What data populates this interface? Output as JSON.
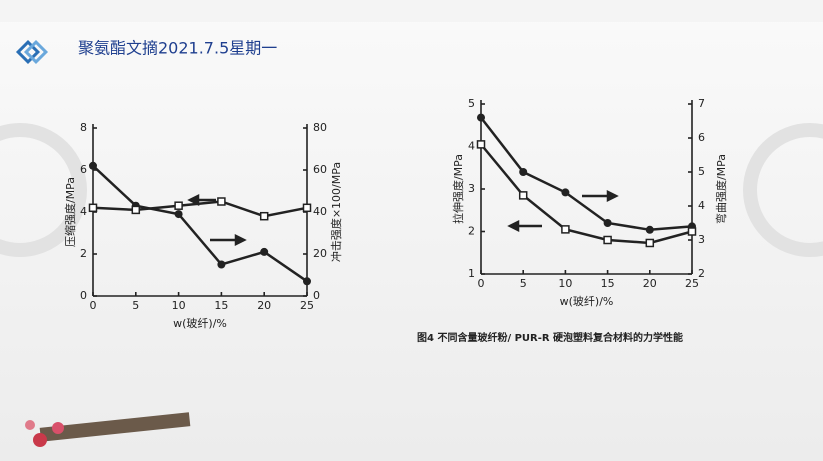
{
  "header": {
    "title": "聚氨酯文摘2021.7.5星期一"
  },
  "chart_data": [
    {
      "type": "line",
      "x": [
        0,
        5,
        10,
        15,
        20,
        25
      ],
      "xlim": [
        0,
        25
      ],
      "xticks": [
        0,
        5,
        10,
        15,
        20,
        25
      ],
      "xlabel": "w(玻纤)/%",
      "ylabel": "压缩强度/MPa",
      "y2label": "冲击强度×100/MPa",
      "ylim": [
        0,
        8
      ],
      "yticks": [
        0,
        2,
        4,
        6,
        8
      ],
      "y2lim": [
        0,
        80
      ],
      "y2ticks": [
        0,
        20,
        40,
        60,
        80
      ],
      "series": [
        {
          "marker": "circle",
          "color": "#222222",
          "values": [
            6.2,
            4.3,
            3.9,
            1.5,
            2.1,
            0.7
          ]
        },
        {
          "marker": "square",
          "color": "#222222",
          "axis": "y2",
          "values": [
            42,
            41,
            43,
            45,
            38,
            42
          ]
        }
      ]
    },
    {
      "type": "line",
      "x": [
        0,
        5,
        10,
        15,
        20,
        25
      ],
      "xlim": [
        0,
        25
      ],
      "xticks": [
        0,
        5,
        10,
        15,
        20,
        25
      ],
      "xlabel": "w(玻纤)/%",
      "ylabel": "拉伸强度/MPa",
      "y2label": "弯曲强度/MPa",
      "ylim": [
        1,
        5
      ],
      "yticks": [
        1,
        2,
        3,
        4,
        5
      ],
      "y2lim": [
        2,
        7
      ],
      "y2ticks": [
        2,
        3,
        4,
        5,
        6,
        7
      ],
      "series": [
        {
          "marker": "circle",
          "color": "#222222",
          "axis": "y2",
          "values": [
            6.6,
            5.0,
            4.4,
            3.5,
            3.3,
            3.4
          ]
        },
        {
          "marker": "square",
          "color": "#222222",
          "values": [
            4.05,
            2.85,
            2.05,
            1.8,
            1.73,
            2.0
          ]
        }
      ]
    }
  ],
  "caption": "图4  不同含量玻纤粉/ PUR-R 硬泡塑料复合材料的力学性能"
}
